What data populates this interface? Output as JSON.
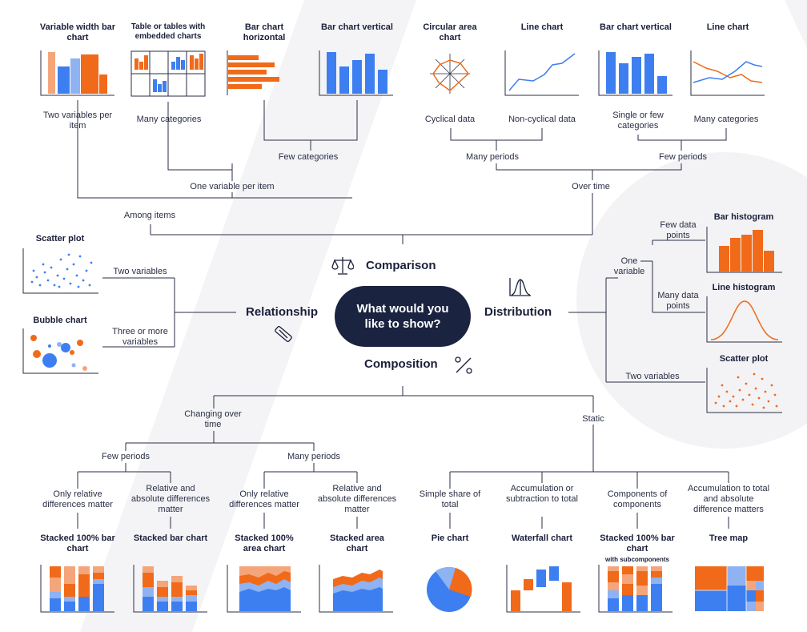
{
  "center": {
    "question": "What would you like to show?"
  },
  "categories": {
    "comparison": "Comparison",
    "relationship": "Relationship",
    "distribution": "Distribution",
    "composition": "Composition"
  },
  "comparison": {
    "charts": [
      {
        "title": "Variable width bar chart"
      },
      {
        "title": "Table or tables with embedded charts"
      },
      {
        "title": "Bar chart horizontal"
      },
      {
        "title": "Bar chart vertical"
      },
      {
        "title": "Circular area chart"
      },
      {
        "title": "Line chart"
      },
      {
        "title": "Bar chart vertical"
      },
      {
        "title": "Line chart"
      }
    ],
    "labels": {
      "two_vars_per_item": "Two variables per item",
      "many_categories_left": "Many categories",
      "cyclical": "Cyclical data",
      "non_cyclical": "Non-cyclical data",
      "single_few_categories": "Single or few categories",
      "many_categories_right": "Many categories",
      "few_categories": "Few categories",
      "many_periods": "Many periods",
      "few_periods": "Few periods",
      "one_var_per_item": "One variable per item",
      "over_time": "Over time",
      "among_items": "Among items"
    }
  },
  "relationship": {
    "charts": [
      {
        "title": "Scatter plot"
      },
      {
        "title": "Bubble chart"
      }
    ],
    "labels": {
      "two_variables": "Two variables",
      "three_or_more": "Three or more variables"
    }
  },
  "distribution": {
    "charts": [
      {
        "title": "Bar histogram"
      },
      {
        "title": "Line histogram"
      },
      {
        "title": "Scatter plot"
      }
    ],
    "labels": {
      "one_variable": "One variable",
      "few_data_points": "Few data points",
      "many_data_points": "Many data points",
      "two_variables": "Two variables"
    }
  },
  "composition": {
    "labels": {
      "changing_over_time": "Changing over time",
      "static": "Static",
      "few_periods": "Few periods",
      "many_periods": "Many periods",
      "only_relative_1": "Only relative differences matter",
      "rel_abs_1": "Relative and absolute differences matter",
      "only_relative_2": "Only relative differences matter",
      "rel_abs_2": "Relative and absolute differences matter",
      "simple_share": "Simple share of total",
      "accumulation_subtraction": "Accumulation or subtraction to total",
      "components_of_components": "Components of components",
      "accumulation_to_total": "Accumulation to total and absolute difference matters"
    },
    "charts": [
      {
        "title": "Stacked 100% bar chart"
      },
      {
        "title": "Stacked bar chart"
      },
      {
        "title": "Stacked 100% area chart"
      },
      {
        "title": "Stacked area chart"
      },
      {
        "title": "Pie chart"
      },
      {
        "title": "Waterfall chart"
      },
      {
        "title": "Stacked 100% bar chart",
        "subtitle": "with subcomponents"
      },
      {
        "title": "Tree map"
      }
    ]
  },
  "colors": {
    "navy": "#1a2340",
    "orange": "#f06a1a",
    "peach": "#f5a57a",
    "blue": "#3d7ff0",
    "light_blue": "#8fb2f2",
    "line": "#2a2f45"
  }
}
